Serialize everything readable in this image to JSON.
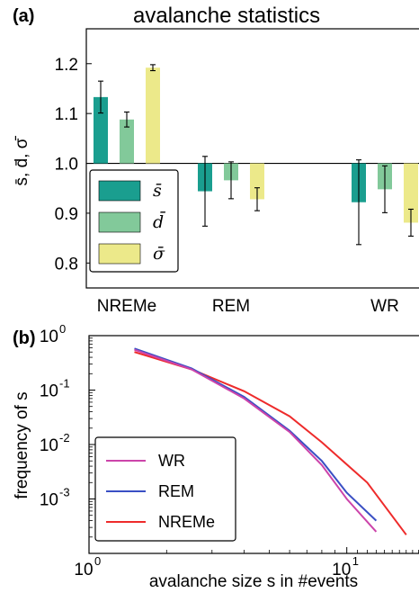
{
  "panel_a": {
    "label": "(a)",
    "title": "avalanche statistics",
    "ylabel": "s̄, d̄, σ̄",
    "legend": [
      "s̄",
      "d̄",
      "σ̄"
    ],
    "ytick_labels": [
      "0.8",
      "0.9",
      "1.0",
      "1.1",
      "1.2"
    ]
  },
  "panel_b": {
    "label": "(b)",
    "xlabel": "avalanche size s in #events",
    "ylabel": "frequency of s",
    "legend": [
      "WR",
      "REM",
      "NREMe"
    ]
  },
  "colors": {
    "s_bar": "#1a9e8f",
    "d_bar": "#82c99a",
    "sigma_bar": "#ece98a",
    "WR": "#cc44aa",
    "REM": "#3a4fc4",
    "NREMe": "#ee2b2b"
  },
  "chart_data": [
    {
      "type": "bar",
      "categories": [
        "NREMe",
        "REM",
        "WR"
      ],
      "ylim": [
        0.75,
        1.27
      ],
      "baseline": 1.0,
      "series": [
        {
          "name": "s̄",
          "values": [
            1.133,
            0.944,
            0.922
          ],
          "errors": [
            0.032,
            0.07,
            0.085
          ]
        },
        {
          "name": "d̄",
          "values": [
            1.088,
            0.966,
            0.948
          ],
          "errors": [
            0.015,
            0.037,
            0.047
          ]
        },
        {
          "name": "σ̄",
          "values": [
            1.192,
            0.928,
            0.881
          ],
          "errors": [
            0.006,
            0.023,
            0.027
          ]
        }
      ],
      "yticks": [
        0.8,
        0.9,
        1.0,
        1.1,
        1.2
      ]
    },
    {
      "type": "line",
      "xscale": "log",
      "yscale": "log",
      "xlim": [
        1,
        20
      ],
      "ylim": [
        0.0001,
        1
      ],
      "xticks": [
        1,
        10
      ],
      "yticks": [
        1,
        0.1,
        0.01,
        0.001
      ],
      "series": [
        {
          "name": "WR",
          "x": [
            1.5,
            2.5,
            4,
            6,
            8,
            10,
            13
          ],
          "y": [
            0.55,
            0.24,
            0.07,
            0.017,
            0.0042,
            0.001,
            0.00025
          ]
        },
        {
          "name": "REM",
          "x": [
            1.5,
            2.5,
            4,
            6,
            8,
            10,
            13
          ],
          "y": [
            0.58,
            0.25,
            0.075,
            0.018,
            0.005,
            0.0013,
            0.0004
          ]
        },
        {
          "name": "NREMe",
          "x": [
            1.5,
            2.5,
            4,
            6,
            8,
            12,
            17
          ],
          "y": [
            0.5,
            0.24,
            0.095,
            0.033,
            0.011,
            0.002,
            0.00022
          ]
        }
      ]
    }
  ]
}
